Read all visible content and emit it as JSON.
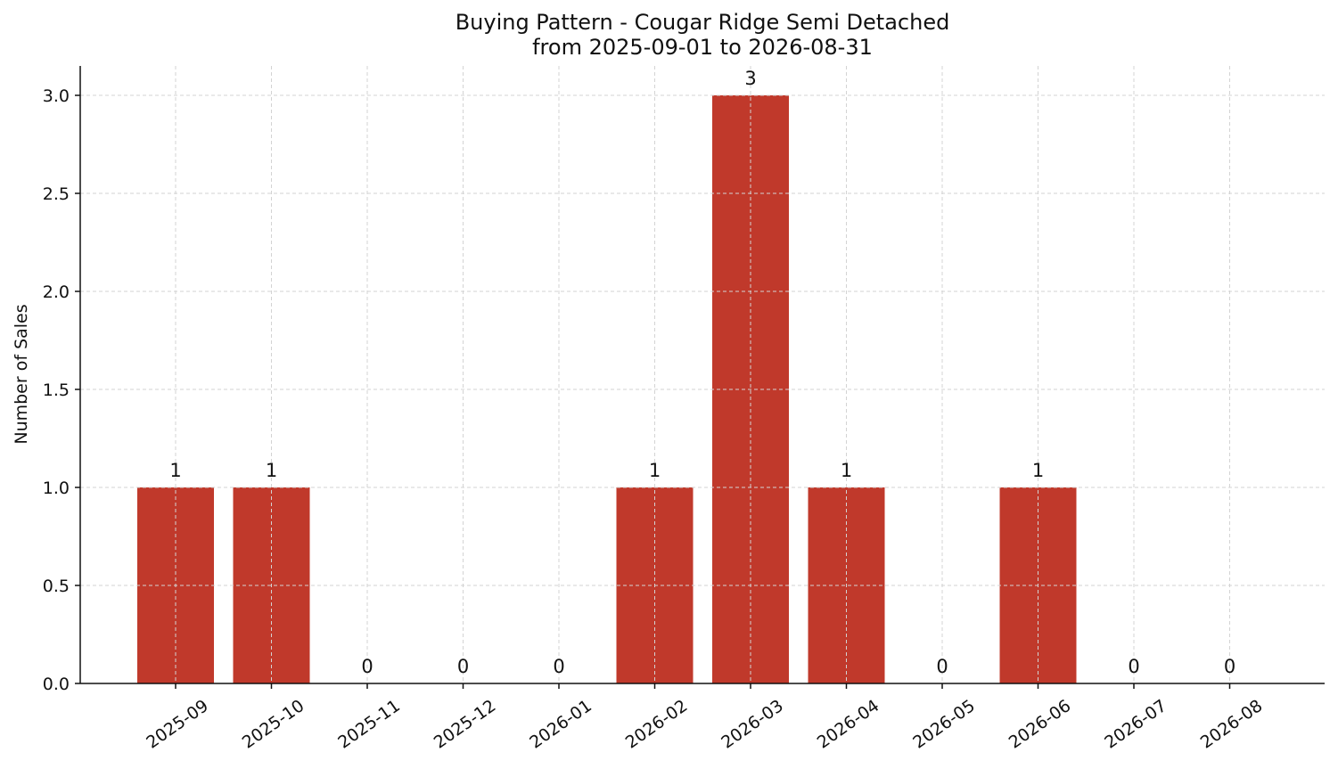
{
  "chart_data": {
    "type": "bar",
    "title": "Buying Pattern - Cougar Ridge Semi Detached",
    "subtitle": "from 2025-09-01 to 2026-08-31",
    "xlabel": "",
    "ylabel": "Number of Sales",
    "categories": [
      "2025-09",
      "2025-10",
      "2025-11",
      "2025-12",
      "2026-01",
      "2026-02",
      "2026-03",
      "2026-04",
      "2026-05",
      "2026-06",
      "2026-07",
      "2026-08"
    ],
    "values": [
      1,
      1,
      0,
      0,
      0,
      1,
      3,
      1,
      0,
      1,
      0,
      0
    ],
    "data_labels": [
      "1",
      "1",
      "0",
      "0",
      "0",
      "1",
      "3",
      "1",
      "0",
      "1",
      "0",
      "0"
    ],
    "yticks": [
      "0.0",
      "0.5",
      "1.0",
      "1.5",
      "2.0",
      "2.5",
      "3.0"
    ],
    "ylim": [
      0,
      3.15
    ],
    "grid": true,
    "legend": "none",
    "bar_color": "#c0392b"
  }
}
